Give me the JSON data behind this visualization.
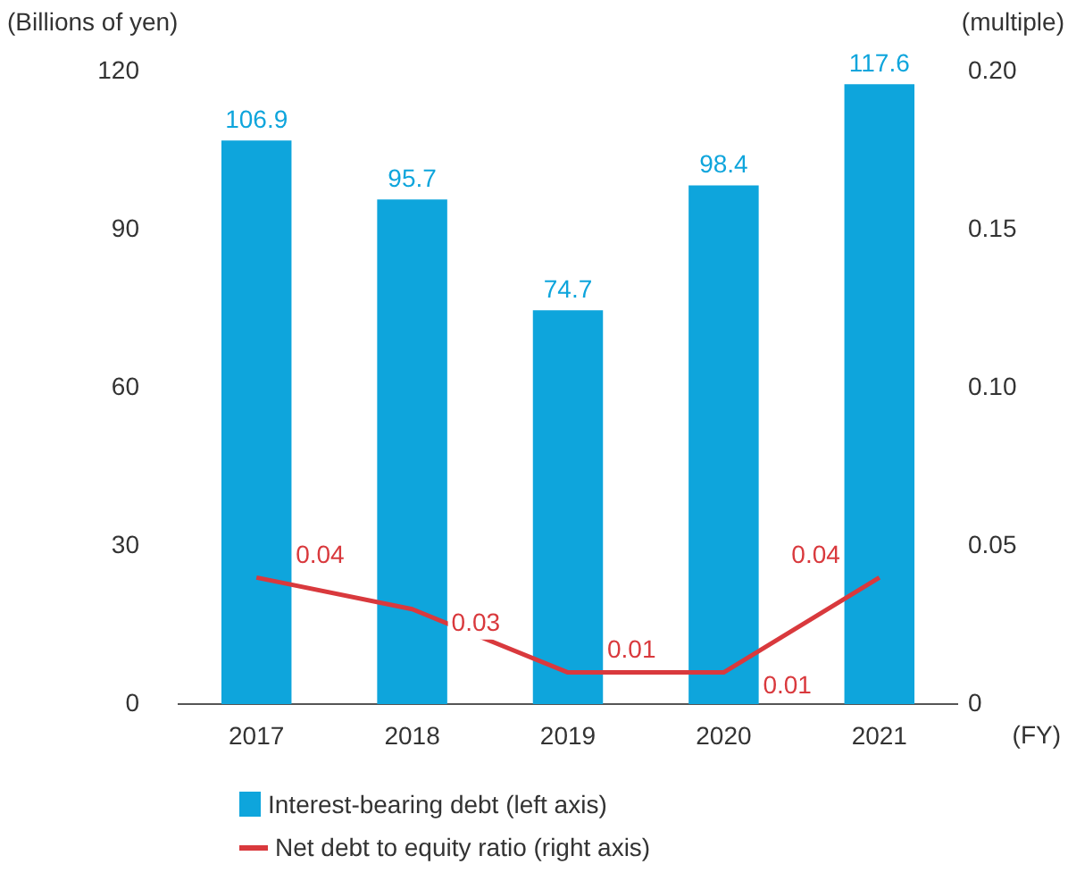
{
  "chart_data": {
    "type": "bar",
    "categories": [
      "2017",
      "2018",
      "2019",
      "2020",
      "2021"
    ],
    "series": [
      {
        "name": "Interest-bearing debt (left axis)",
        "color": "#0ea5dc",
        "values": [
          106.9,
          95.7,
          74.7,
          98.4,
          117.6
        ]
      },
      {
        "name": "Net debt to equity ratio (right axis)",
        "type": "line",
        "axis": "y2",
        "color": "#d9393d",
        "values": [
          0.04,
          0.03,
          0.01,
          0.01,
          0.04
        ]
      }
    ],
    "xlabel": "(FY)",
    "ylabel": "(Billions of yen)",
    "y2label": "(multiple)",
    "ylim": [
      0,
      120
    ],
    "yticks": [
      0,
      30,
      60,
      90,
      120
    ],
    "y2lim": [
      0,
      0.2
    ],
    "y2ticks": [
      0,
      0.05,
      {
        "value": 0.1,
        "label": "0.10"
      },
      0.15,
      {
        "value": 0.2,
        "label": "0.20"
      }
    ],
    "data_labels": true,
    "grid": false,
    "legend": "bottom"
  }
}
